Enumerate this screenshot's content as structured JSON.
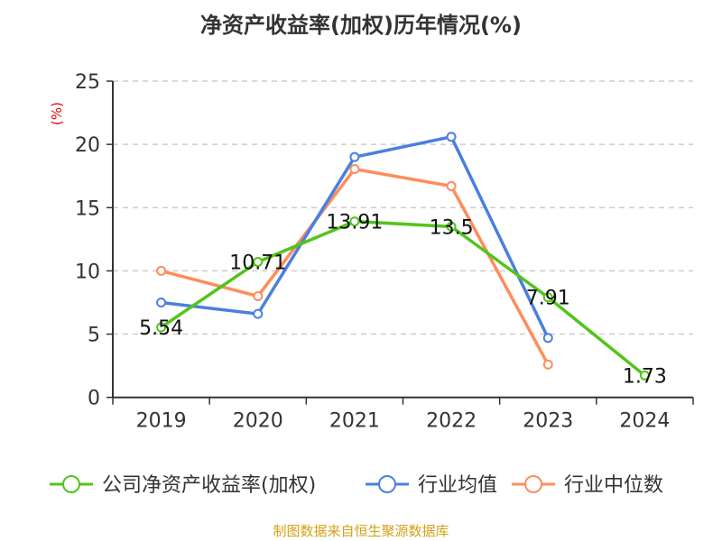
{
  "chart_data": {
    "type": "line",
    "title": "净资产收益率(加权)历年情况(%)",
    "ylabel": "(%)",
    "categories": [
      "2019",
      "2020",
      "2021",
      "2022",
      "2023",
      "2024"
    ],
    "ylim": [
      0,
      25
    ],
    "yticks": [
      0,
      5,
      10,
      15,
      20,
      25
    ],
    "grid": true,
    "legend_position": "bottom",
    "series": [
      {
        "name": "公司净资产收益率(加权)",
        "color": "#52c41a",
        "values": [
          5.54,
          10.71,
          13.91,
          13.5,
          7.91,
          1.73
        ],
        "labels": [
          "5.54",
          "10.71",
          "13.91",
          "13.5",
          "7.91",
          "1.73"
        ]
      },
      {
        "name": "行业均值",
        "color": "#4a7fe0",
        "values": [
          7.5,
          6.6,
          19.0,
          20.6,
          4.7,
          null
        ]
      },
      {
        "name": "行业中位数",
        "color": "#ff8c5a",
        "values": [
          10.0,
          8.0,
          18.05,
          16.7,
          2.6,
          null
        ]
      }
    ]
  },
  "source": "制图数据来自恒生聚源数据库"
}
